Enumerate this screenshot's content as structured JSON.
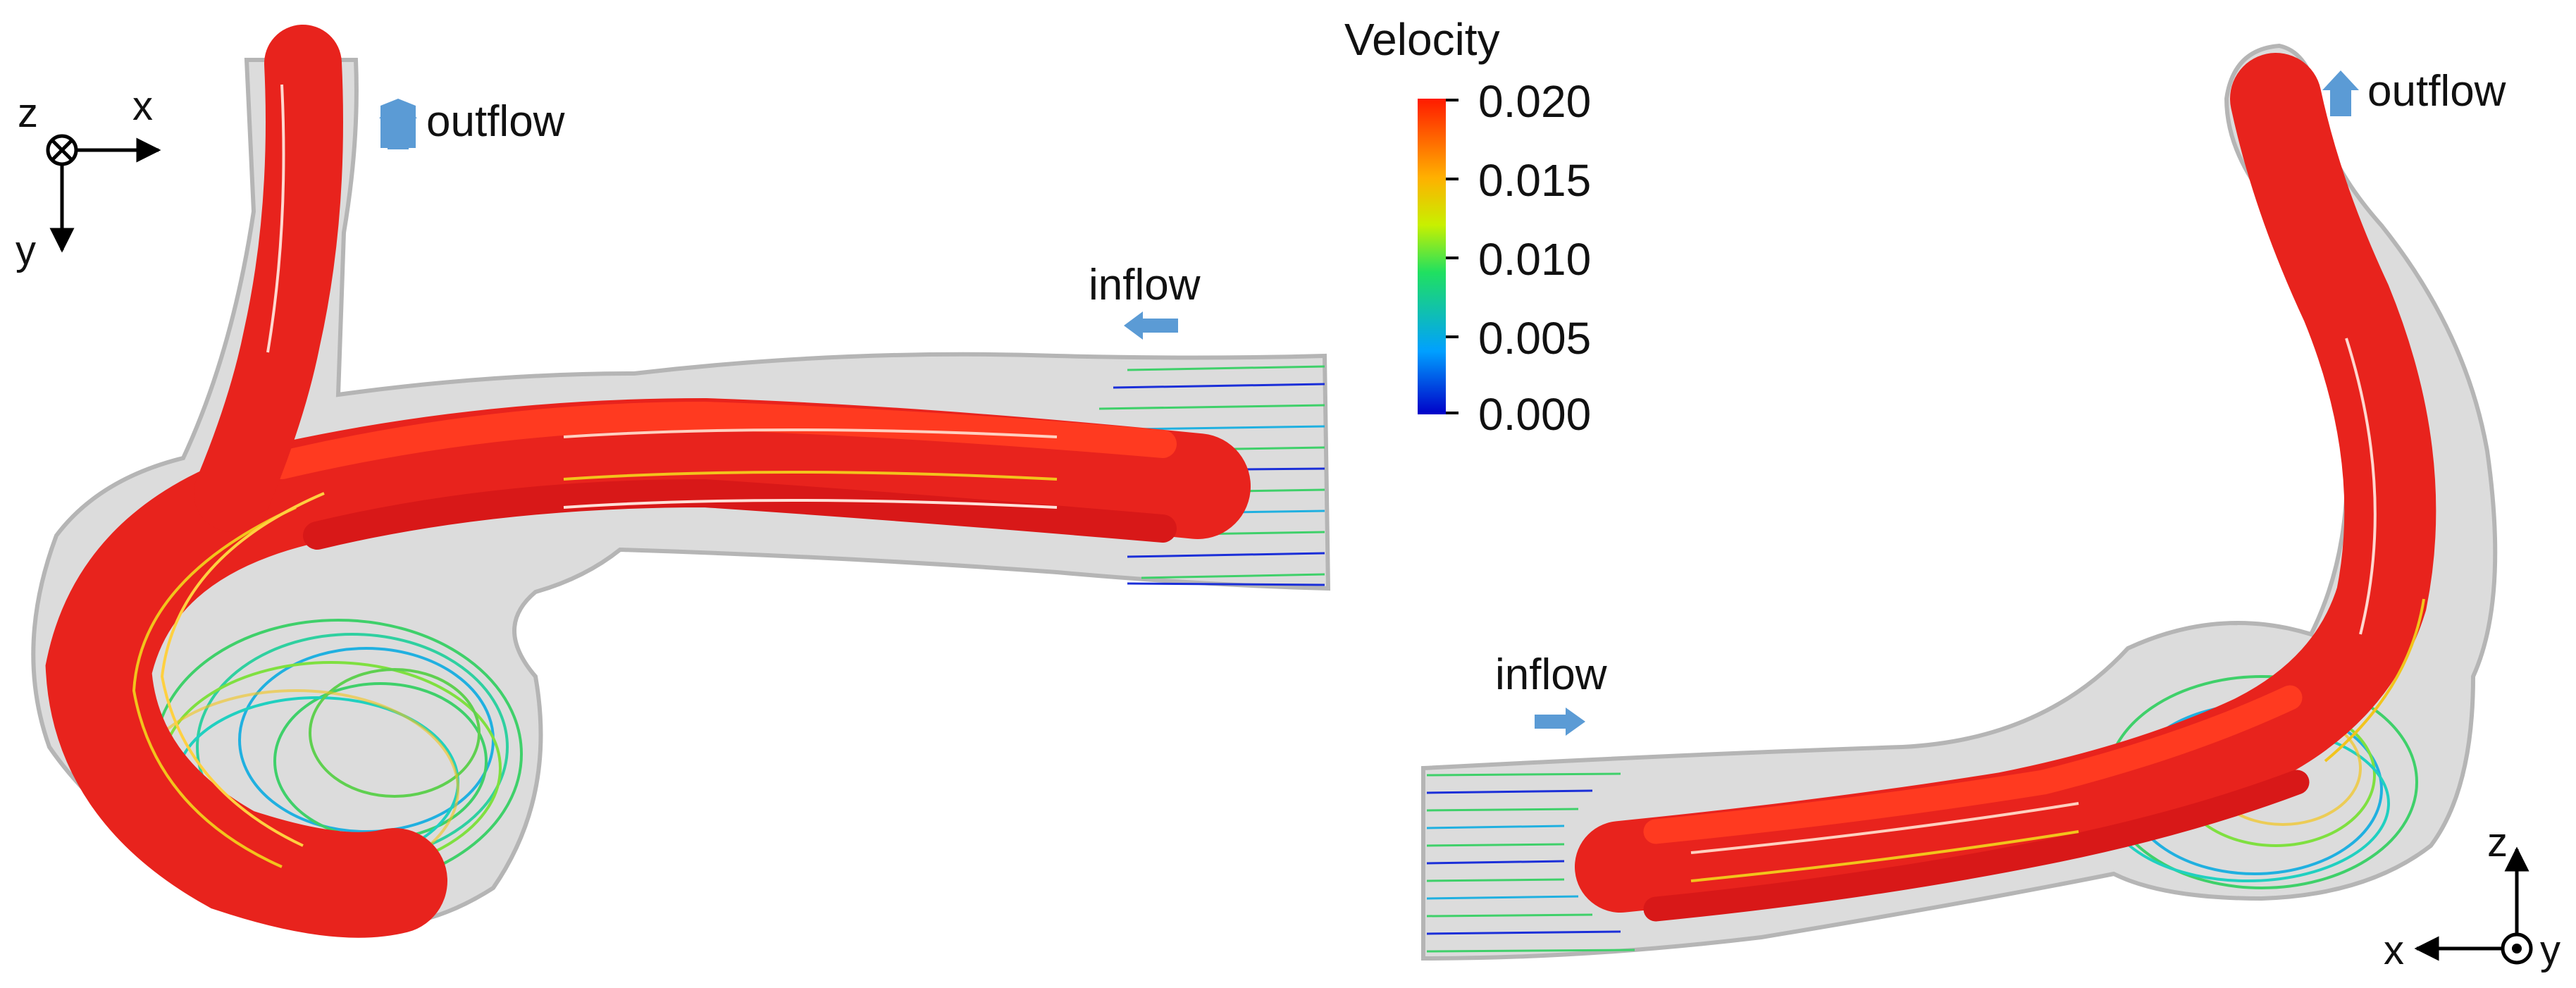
{
  "legend": {
    "title": "Velocity",
    "ticks": [
      "0.020",
      "0.015",
      "0.010",
      "0.005",
      "0.000"
    ]
  },
  "left_view": {
    "outflow_label": "outflow",
    "inflow_label": "inflow",
    "axes": {
      "x": "x",
      "y": "y",
      "z": "z"
    }
  },
  "right_view": {
    "outflow_label": "outflow",
    "inflow_label": "inflow",
    "axes": {
      "x": "x",
      "y": "y",
      "z": "z"
    }
  },
  "colors": {
    "vessel": "#c8c8c8",
    "arrow": "#5b9bd5",
    "fast": "#e8231d",
    "medium": "#f2c41c",
    "slow": "#3fd06a",
    "slowest": "#1b2fd8"
  }
}
